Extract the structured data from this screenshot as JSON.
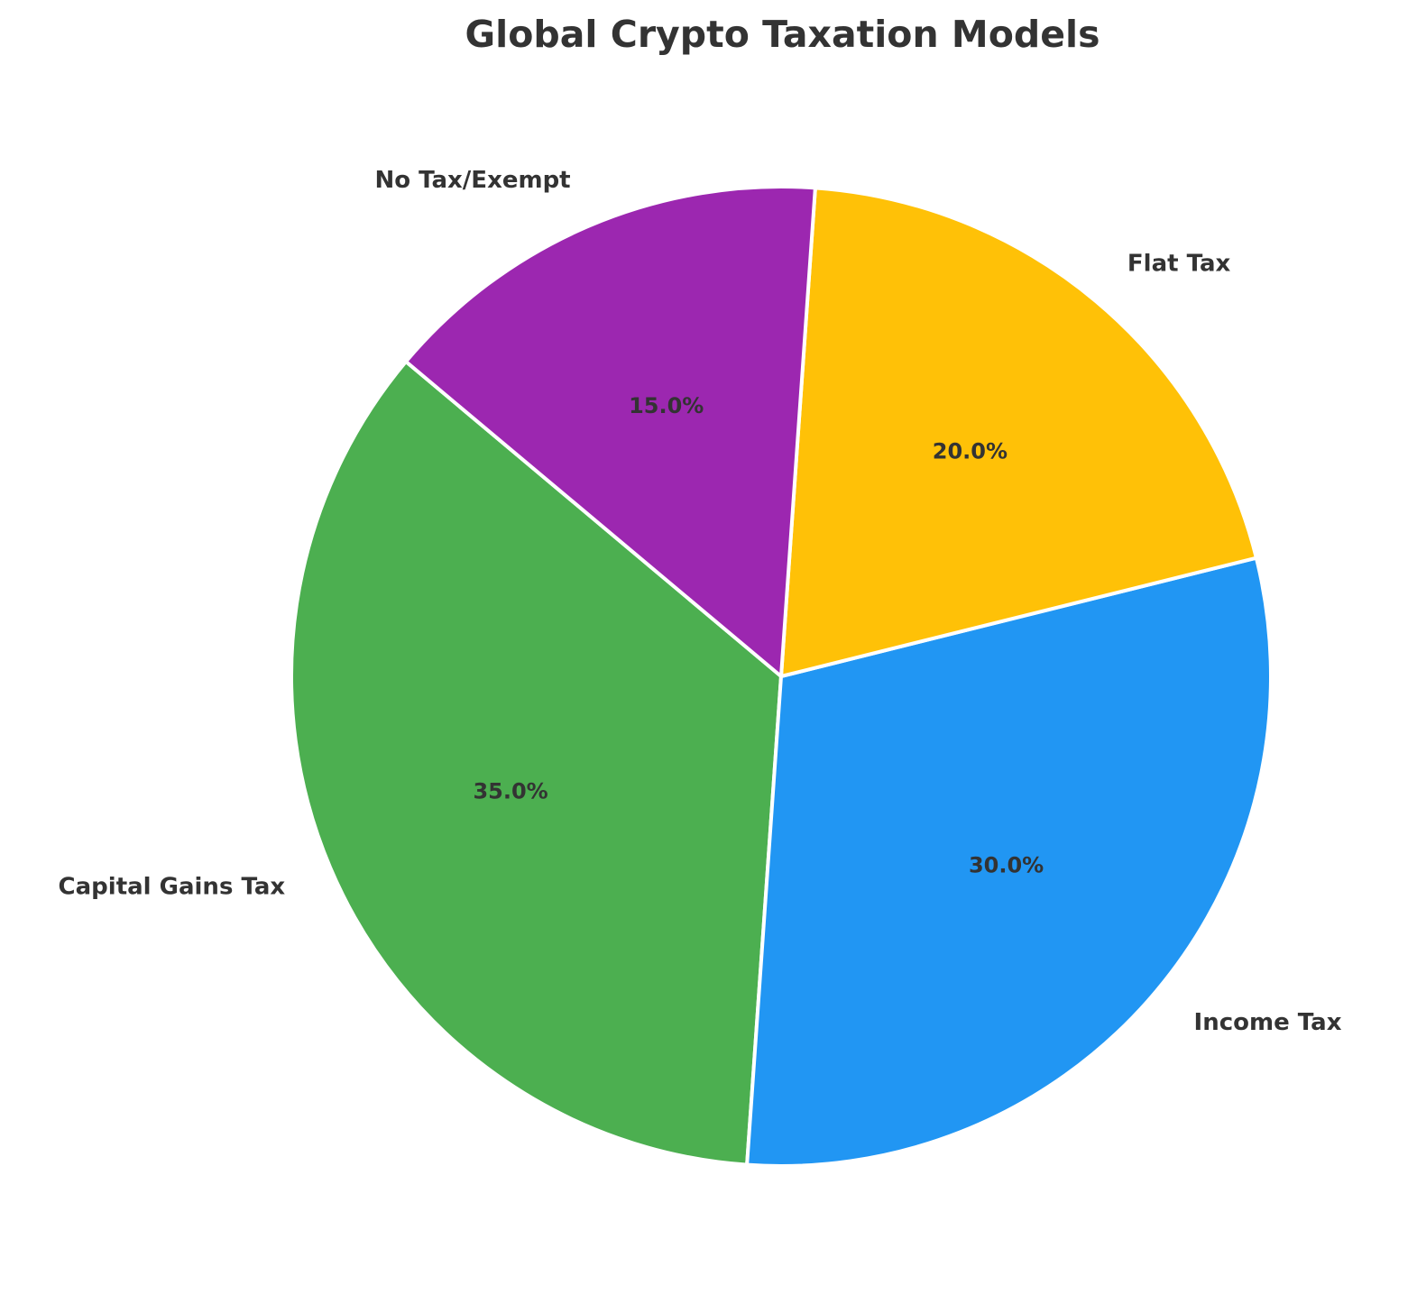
{
  "chart_data": {
    "type": "pie",
    "title": "Global Crypto Taxation Models",
    "categories": [
      "Capital Gains Tax",
      "Income Tax",
      "Flat Tax",
      "No Tax/Exempt"
    ],
    "values": [
      35.0,
      30.0,
      20.0,
      15.0
    ],
    "value_labels": [
      "35.0%",
      "30.0%",
      "20.0%",
      "15.0%"
    ],
    "colors": [
      "#4CAF50",
      "#2196F3",
      "#FFC107",
      "#9C27B0"
    ],
    "start_angle_deg": 140,
    "direction": "counterclockwise",
    "legend": "none"
  }
}
